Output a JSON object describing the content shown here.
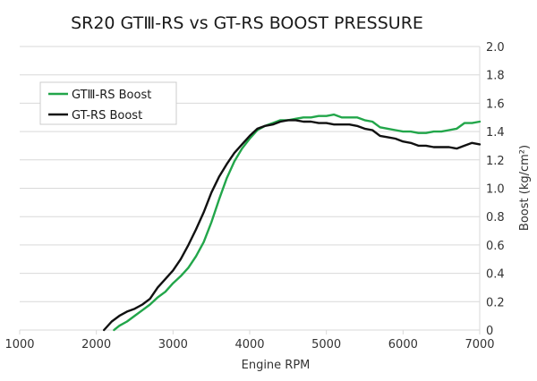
{
  "chart_data": {
    "type": "line",
    "title": "SR20 GTⅢ-RS vs GT-RS BOOST PRESSURE",
    "xlabel": "Engine RPM",
    "ylabel": "Boost (kg/cm²)",
    "xlim": [
      1000,
      7000
    ],
    "ylim": [
      0,
      2.0
    ],
    "x_ticks": [
      "1000",
      "2000",
      "3000",
      "4000",
      "5000",
      "6000",
      "7000"
    ],
    "y_ticks": [
      "0",
      "0.2",
      "0.4",
      "0.6",
      "0.8",
      "1.0",
      "1.2",
      "1.4",
      "1.6",
      "1.8",
      "2.0"
    ],
    "y_axis_side": "right",
    "grid": "horizontal",
    "legend_position": "top-left",
    "series": [
      {
        "name": "GTⅢ-RS Boost",
        "color": "#22a64a",
        "points": [
          [
            2230,
            0.0
          ],
          [
            2300,
            0.03
          ],
          [
            2400,
            0.06
          ],
          [
            2500,
            0.1
          ],
          [
            2600,
            0.14
          ],
          [
            2700,
            0.18
          ],
          [
            2800,
            0.23
          ],
          [
            2900,
            0.27
          ],
          [
            3000,
            0.33
          ],
          [
            3100,
            0.38
          ],
          [
            3200,
            0.44
          ],
          [
            3300,
            0.52
          ],
          [
            3400,
            0.62
          ],
          [
            3500,
            0.76
          ],
          [
            3600,
            0.92
          ],
          [
            3700,
            1.07
          ],
          [
            3800,
            1.19
          ],
          [
            3900,
            1.28
          ],
          [
            4000,
            1.35
          ],
          [
            4100,
            1.41
          ],
          [
            4200,
            1.44
          ],
          [
            4300,
            1.46
          ],
          [
            4400,
            1.48
          ],
          [
            4500,
            1.48
          ],
          [
            4600,
            1.49
          ],
          [
            4700,
            1.5
          ],
          [
            4800,
            1.5
          ],
          [
            4900,
            1.51
          ],
          [
            5000,
            1.51
          ],
          [
            5100,
            1.52
          ],
          [
            5200,
            1.5
          ],
          [
            5300,
            1.5
          ],
          [
            5400,
            1.5
          ],
          [
            5500,
            1.48
          ],
          [
            5600,
            1.47
          ],
          [
            5700,
            1.43
          ],
          [
            5800,
            1.42
          ],
          [
            5900,
            1.41
          ],
          [
            6000,
            1.4
          ],
          [
            6100,
            1.4
          ],
          [
            6200,
            1.39
          ],
          [
            6300,
            1.39
          ],
          [
            6400,
            1.4
          ],
          [
            6500,
            1.4
          ],
          [
            6600,
            1.41
          ],
          [
            6700,
            1.42
          ],
          [
            6800,
            1.46
          ],
          [
            6900,
            1.46
          ],
          [
            7000,
            1.47
          ]
        ]
      },
      {
        "name": "GT-RS Boost",
        "color": "#111111",
        "points": [
          [
            2100,
            0.0
          ],
          [
            2200,
            0.06
          ],
          [
            2300,
            0.1
          ],
          [
            2400,
            0.13
          ],
          [
            2500,
            0.15
          ],
          [
            2600,
            0.18
          ],
          [
            2700,
            0.22
          ],
          [
            2800,
            0.3
          ],
          [
            2900,
            0.36
          ],
          [
            3000,
            0.42
          ],
          [
            3100,
            0.5
          ],
          [
            3200,
            0.6
          ],
          [
            3300,
            0.71
          ],
          [
            3400,
            0.83
          ],
          [
            3500,
            0.97
          ],
          [
            3600,
            1.08
          ],
          [
            3700,
            1.17
          ],
          [
            3800,
            1.25
          ],
          [
            3900,
            1.31
          ],
          [
            4000,
            1.37
          ],
          [
            4100,
            1.42
          ],
          [
            4200,
            1.44
          ],
          [
            4300,
            1.45
          ],
          [
            4400,
            1.47
          ],
          [
            4500,
            1.48
          ],
          [
            4600,
            1.48
          ],
          [
            4700,
            1.47
          ],
          [
            4800,
            1.47
          ],
          [
            4900,
            1.46
          ],
          [
            5000,
            1.46
          ],
          [
            5100,
            1.45
          ],
          [
            5200,
            1.45
          ],
          [
            5300,
            1.45
          ],
          [
            5400,
            1.44
          ],
          [
            5500,
            1.42
          ],
          [
            5600,
            1.41
          ],
          [
            5700,
            1.37
          ],
          [
            5800,
            1.36
          ],
          [
            5900,
            1.35
          ],
          [
            6000,
            1.33
          ],
          [
            6100,
            1.32
          ],
          [
            6200,
            1.3
          ],
          [
            6300,
            1.3
          ],
          [
            6400,
            1.29
          ],
          [
            6500,
            1.29
          ],
          [
            6600,
            1.29
          ],
          [
            6700,
            1.28
          ],
          [
            6800,
            1.3
          ],
          [
            6900,
            1.32
          ],
          [
            7000,
            1.31
          ]
        ]
      }
    ]
  }
}
